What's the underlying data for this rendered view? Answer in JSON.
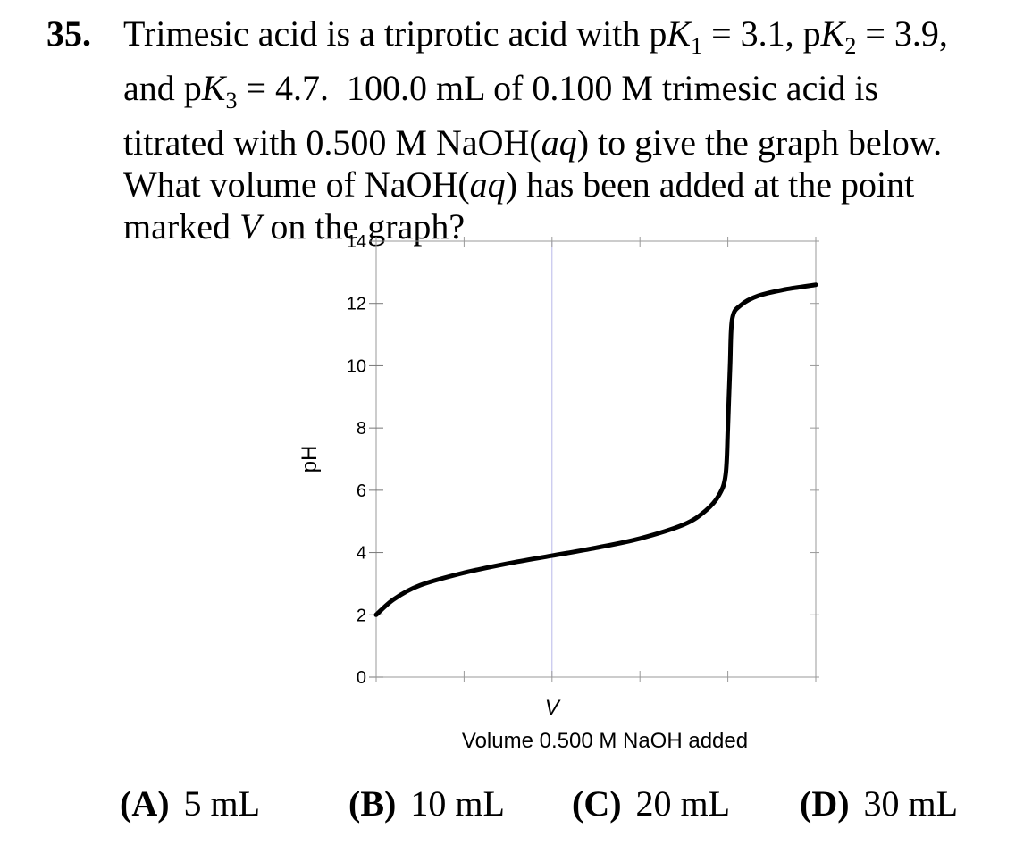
{
  "question": {
    "number": "35.",
    "lines": [
      [
        "Trimesic acid is a triprotic acid with p",
        "K",
        "1",
        " = 3.1, p",
        "K",
        "2",
        " = 3.9,"
      ],
      [
        "and p",
        "K",
        "3",
        " = 4.7.  100.0 mL of 0.100 M trimesic acid is"
      ],
      [
        "titrated with 0.500 M NaOH(",
        "aq",
        ") to give the graph below."
      ],
      [
        "What volume of NaOH(",
        "aq",
        ") has been added at the point"
      ],
      [
        "marked ",
        "V",
        " on the graph?"
      ]
    ]
  },
  "chart_data": {
    "type": "line",
    "ylabel": "pH",
    "xlabel": "Volume 0.500 M NaOH added",
    "ylim": [
      0,
      14
    ],
    "yticks": [
      "0",
      "2",
      "4",
      "6",
      "8",
      "10",
      "12",
      "14"
    ],
    "x_tick_count": 6,
    "marker_label": "V",
    "marker_x_fraction": 0.4,
    "grid": "vertical line at V only",
    "curve": {
      "x_fraction": [
        0,
        0.04,
        0.1,
        0.2,
        0.3,
        0.4,
        0.5,
        0.6,
        0.7,
        0.75,
        0.78,
        0.795,
        0.8,
        0.805,
        0.81,
        0.83,
        0.87,
        0.93,
        1.0
      ],
      "pH": [
        2.0,
        2.5,
        2.95,
        3.35,
        3.65,
        3.9,
        4.15,
        4.45,
        4.9,
        5.35,
        5.85,
        6.5,
        8.0,
        10.0,
        11.5,
        11.95,
        12.25,
        12.45,
        12.6
      ]
    }
  },
  "choices": [
    {
      "label": "(A)",
      "value": "5 mL"
    },
    {
      "label": "(B)",
      "value": "10 mL"
    },
    {
      "label": "(C)",
      "value": "20 mL"
    },
    {
      "label": "(D)",
      "value": "30 mL"
    }
  ]
}
